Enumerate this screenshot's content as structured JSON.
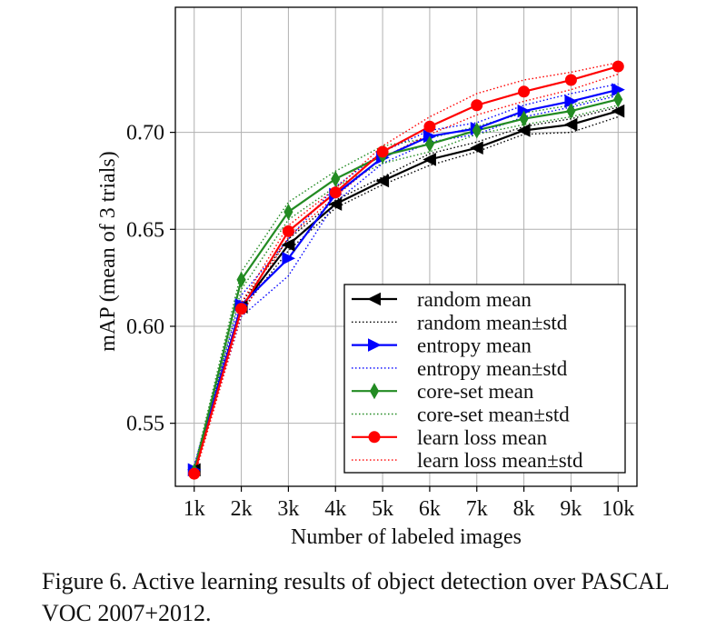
{
  "caption": "Figure 6. Active learning results of object detection over PASCAL VOC 2007+2012.",
  "chart_data": {
    "type": "line",
    "xlabel": "Number of labeled images",
    "ylabel": "mAP (mean of 3 trials)",
    "x": [
      1,
      2,
      3,
      4,
      5,
      6,
      7,
      8,
      9,
      10
    ],
    "x_tick_labels": [
      "1k",
      "2k",
      "3k",
      "4k",
      "5k",
      "6k",
      "7k",
      "8k",
      "9k",
      "10k"
    ],
    "y_ticks": [
      0.55,
      0.6,
      0.65,
      0.7
    ],
    "y_tick_labels": [
      "0.55",
      "0.60",
      "0.65",
      "0.70"
    ],
    "xlim": [
      0.6,
      10.4
    ],
    "ylim": [
      0.5175,
      0.7645
    ],
    "grid": true,
    "legend_position": "lower-right",
    "series": [
      {
        "name": "random mean",
        "std_name": "random mean±std",
        "color": "#000000",
        "marker": "triangle-left",
        "values": [
          0.526,
          0.61,
          0.642,
          0.663,
          0.675,
          0.686,
          0.692,
          0.701,
          0.704,
          0.711
        ],
        "upper": [
          0.528,
          0.612,
          0.645,
          0.665,
          0.677,
          0.689,
          0.695,
          0.703,
          0.707,
          0.713
        ],
        "lower": [
          0.524,
          0.608,
          0.639,
          0.661,
          0.673,
          0.683,
          0.69,
          0.699,
          0.7,
          0.708
        ]
      },
      {
        "name": "entropy mean",
        "std_name": "entropy mean±std",
        "color": "#0000ff",
        "marker": "triangle-right",
        "values": [
          0.526,
          0.611,
          0.635,
          0.668,
          0.687,
          0.698,
          0.702,
          0.711,
          0.716,
          0.722
        ],
        "upper": [
          0.528,
          0.616,
          0.645,
          0.672,
          0.69,
          0.701,
          0.705,
          0.714,
          0.72,
          0.725
        ],
        "lower": [
          0.524,
          0.605,
          0.626,
          0.664,
          0.684,
          0.695,
          0.699,
          0.708,
          0.713,
          0.719
        ]
      },
      {
        "name": "core-set mean",
        "std_name": "core-set mean±std",
        "color": "#228B22",
        "marker": "diamond",
        "values": [
          0.525,
          0.624,
          0.659,
          0.676,
          0.688,
          0.694,
          0.701,
          0.707,
          0.711,
          0.717
        ],
        "upper": [
          0.527,
          0.628,
          0.664,
          0.68,
          0.693,
          0.697,
          0.703,
          0.71,
          0.714,
          0.72
        ],
        "lower": [
          0.523,
          0.619,
          0.655,
          0.672,
          0.684,
          0.69,
          0.699,
          0.704,
          0.708,
          0.714
        ]
      },
      {
        "name": "learn loss mean",
        "std_name": "learn loss mean±std",
        "color": "#ff0000",
        "marker": "circle",
        "values": [
          0.524,
          0.609,
          0.649,
          0.669,
          0.69,
          0.703,
          0.714,
          0.721,
          0.727,
          0.734
        ],
        "upper": [
          0.526,
          0.612,
          0.652,
          0.671,
          0.693,
          0.708,
          0.72,
          0.727,
          0.731,
          0.736
        ],
        "lower": [
          0.522,
          0.606,
          0.646,
          0.667,
          0.687,
          0.699,
          0.709,
          0.716,
          0.722,
          0.73
        ]
      }
    ]
  }
}
